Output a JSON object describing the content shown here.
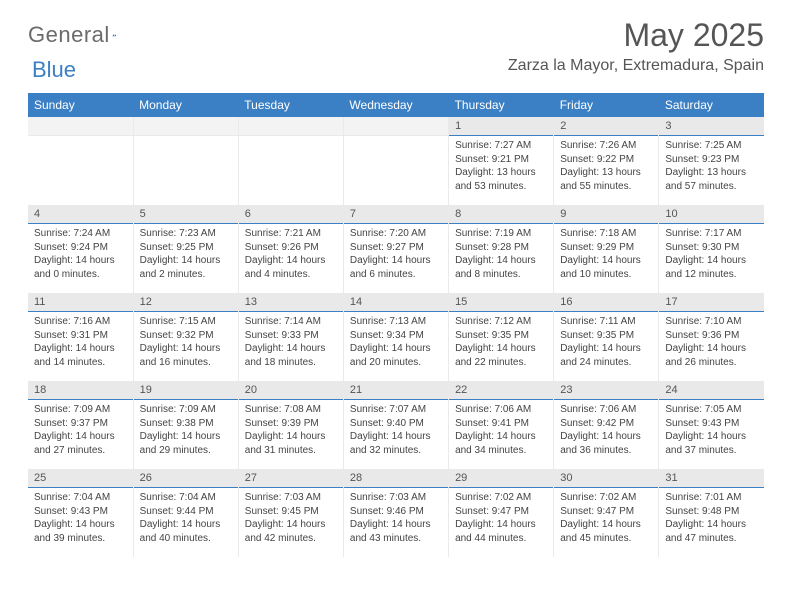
{
  "logo": {
    "word1": "General",
    "word2": "Blue"
  },
  "title": "May 2025",
  "subtitle": "Zarza la Mayor, Extremadura, Spain",
  "colors": {
    "accent": "#3b7fc4",
    "header_text": "#ffffff",
    "daynum_bg": "#e9e9e9",
    "text": "#444444"
  },
  "day_headers": [
    "Sunday",
    "Monday",
    "Tuesday",
    "Wednesday",
    "Thursday",
    "Friday",
    "Saturday"
  ],
  "weeks": [
    [
      {
        "n": "",
        "sr": "",
        "ss": "",
        "dl": ""
      },
      {
        "n": "",
        "sr": "",
        "ss": "",
        "dl": ""
      },
      {
        "n": "",
        "sr": "",
        "ss": "",
        "dl": ""
      },
      {
        "n": "",
        "sr": "",
        "ss": "",
        "dl": ""
      },
      {
        "n": "1",
        "sr": "Sunrise: 7:27 AM",
        "ss": "Sunset: 9:21 PM",
        "dl": "Daylight: 13 hours and 53 minutes."
      },
      {
        "n": "2",
        "sr": "Sunrise: 7:26 AM",
        "ss": "Sunset: 9:22 PM",
        "dl": "Daylight: 13 hours and 55 minutes."
      },
      {
        "n": "3",
        "sr": "Sunrise: 7:25 AM",
        "ss": "Sunset: 9:23 PM",
        "dl": "Daylight: 13 hours and 57 minutes."
      }
    ],
    [
      {
        "n": "4",
        "sr": "Sunrise: 7:24 AM",
        "ss": "Sunset: 9:24 PM",
        "dl": "Daylight: 14 hours and 0 minutes."
      },
      {
        "n": "5",
        "sr": "Sunrise: 7:23 AM",
        "ss": "Sunset: 9:25 PM",
        "dl": "Daylight: 14 hours and 2 minutes."
      },
      {
        "n": "6",
        "sr": "Sunrise: 7:21 AM",
        "ss": "Sunset: 9:26 PM",
        "dl": "Daylight: 14 hours and 4 minutes."
      },
      {
        "n": "7",
        "sr": "Sunrise: 7:20 AM",
        "ss": "Sunset: 9:27 PM",
        "dl": "Daylight: 14 hours and 6 minutes."
      },
      {
        "n": "8",
        "sr": "Sunrise: 7:19 AM",
        "ss": "Sunset: 9:28 PM",
        "dl": "Daylight: 14 hours and 8 minutes."
      },
      {
        "n": "9",
        "sr": "Sunrise: 7:18 AM",
        "ss": "Sunset: 9:29 PM",
        "dl": "Daylight: 14 hours and 10 minutes."
      },
      {
        "n": "10",
        "sr": "Sunrise: 7:17 AM",
        "ss": "Sunset: 9:30 PM",
        "dl": "Daylight: 14 hours and 12 minutes."
      }
    ],
    [
      {
        "n": "11",
        "sr": "Sunrise: 7:16 AM",
        "ss": "Sunset: 9:31 PM",
        "dl": "Daylight: 14 hours and 14 minutes."
      },
      {
        "n": "12",
        "sr": "Sunrise: 7:15 AM",
        "ss": "Sunset: 9:32 PM",
        "dl": "Daylight: 14 hours and 16 minutes."
      },
      {
        "n": "13",
        "sr": "Sunrise: 7:14 AM",
        "ss": "Sunset: 9:33 PM",
        "dl": "Daylight: 14 hours and 18 minutes."
      },
      {
        "n": "14",
        "sr": "Sunrise: 7:13 AM",
        "ss": "Sunset: 9:34 PM",
        "dl": "Daylight: 14 hours and 20 minutes."
      },
      {
        "n": "15",
        "sr": "Sunrise: 7:12 AM",
        "ss": "Sunset: 9:35 PM",
        "dl": "Daylight: 14 hours and 22 minutes."
      },
      {
        "n": "16",
        "sr": "Sunrise: 7:11 AM",
        "ss": "Sunset: 9:35 PM",
        "dl": "Daylight: 14 hours and 24 minutes."
      },
      {
        "n": "17",
        "sr": "Sunrise: 7:10 AM",
        "ss": "Sunset: 9:36 PM",
        "dl": "Daylight: 14 hours and 26 minutes."
      }
    ],
    [
      {
        "n": "18",
        "sr": "Sunrise: 7:09 AM",
        "ss": "Sunset: 9:37 PM",
        "dl": "Daylight: 14 hours and 27 minutes."
      },
      {
        "n": "19",
        "sr": "Sunrise: 7:09 AM",
        "ss": "Sunset: 9:38 PM",
        "dl": "Daylight: 14 hours and 29 minutes."
      },
      {
        "n": "20",
        "sr": "Sunrise: 7:08 AM",
        "ss": "Sunset: 9:39 PM",
        "dl": "Daylight: 14 hours and 31 minutes."
      },
      {
        "n": "21",
        "sr": "Sunrise: 7:07 AM",
        "ss": "Sunset: 9:40 PM",
        "dl": "Daylight: 14 hours and 32 minutes."
      },
      {
        "n": "22",
        "sr": "Sunrise: 7:06 AM",
        "ss": "Sunset: 9:41 PM",
        "dl": "Daylight: 14 hours and 34 minutes."
      },
      {
        "n": "23",
        "sr": "Sunrise: 7:06 AM",
        "ss": "Sunset: 9:42 PM",
        "dl": "Daylight: 14 hours and 36 minutes."
      },
      {
        "n": "24",
        "sr": "Sunrise: 7:05 AM",
        "ss": "Sunset: 9:43 PM",
        "dl": "Daylight: 14 hours and 37 minutes."
      }
    ],
    [
      {
        "n": "25",
        "sr": "Sunrise: 7:04 AM",
        "ss": "Sunset: 9:43 PM",
        "dl": "Daylight: 14 hours and 39 minutes."
      },
      {
        "n": "26",
        "sr": "Sunrise: 7:04 AM",
        "ss": "Sunset: 9:44 PM",
        "dl": "Daylight: 14 hours and 40 minutes."
      },
      {
        "n": "27",
        "sr": "Sunrise: 7:03 AM",
        "ss": "Sunset: 9:45 PM",
        "dl": "Daylight: 14 hours and 42 minutes."
      },
      {
        "n": "28",
        "sr": "Sunrise: 7:03 AM",
        "ss": "Sunset: 9:46 PM",
        "dl": "Daylight: 14 hours and 43 minutes."
      },
      {
        "n": "29",
        "sr": "Sunrise: 7:02 AM",
        "ss": "Sunset: 9:47 PM",
        "dl": "Daylight: 14 hours and 44 minutes."
      },
      {
        "n": "30",
        "sr": "Sunrise: 7:02 AM",
        "ss": "Sunset: 9:47 PM",
        "dl": "Daylight: 14 hours and 45 minutes."
      },
      {
        "n": "31",
        "sr": "Sunrise: 7:01 AM",
        "ss": "Sunset: 9:48 PM",
        "dl": "Daylight: 14 hours and 47 minutes."
      }
    ]
  ]
}
